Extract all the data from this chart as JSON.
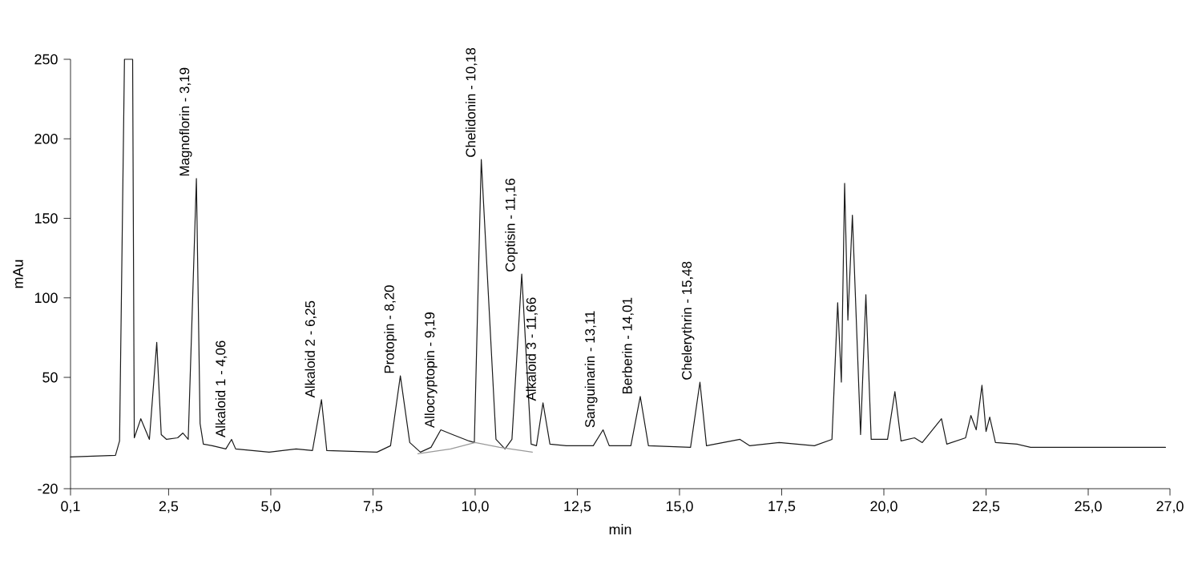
{
  "chart_data": {
    "type": "line",
    "xlabel": "min",
    "ylabel": "mAu",
    "xlim": [
      0.1,
      27.0
    ],
    "ylim": [
      -20,
      250
    ],
    "xticks": [
      {
        "value": 0.1,
        "label": "0,1"
      },
      {
        "value": 2.5,
        "label": "2,5"
      },
      {
        "value": 5.0,
        "label": "5,0"
      },
      {
        "value": 7.5,
        "label": "7,5"
      },
      {
        "value": 10.0,
        "label": "10,0"
      },
      {
        "value": 12.5,
        "label": "12,5"
      },
      {
        "value": 15.0,
        "label": "15,0"
      },
      {
        "value": 17.5,
        "label": "17,5"
      },
      {
        "value": 20.0,
        "label": "20,0"
      },
      {
        "value": 22.5,
        "label": "22,5"
      },
      {
        "value": 25.0,
        "label": "25,0"
      },
      {
        "value": 27.0,
        "label": "27,0"
      }
    ],
    "yticks": [
      -20,
      50,
      100,
      150,
      200,
      250
    ],
    "series": [
      {
        "color": "#1a1a1a",
        "x": [
          0.1,
          1.2,
          1.3,
          1.42,
          1.62,
          1.66,
          1.82,
          2.03,
          2.21,
          2.32,
          2.45,
          2.72,
          2.85,
          2.98,
          3.18,
          3.27,
          3.35,
          3.57,
          3.9,
          4.04,
          4.14,
          4.96,
          5.62,
          6.02,
          6.24,
          6.37,
          7.6,
          7.93,
          8.17,
          8.4,
          8.66,
          8.92,
          9.16,
          9.45,
          9.85,
          9.98,
          10.15,
          10.51,
          10.73,
          10.9,
          11.14,
          11.37,
          11.5,
          11.66,
          11.83,
          12.23,
          12.89,
          13.13,
          13.28,
          13.81,
          14.04,
          14.24,
          15.27,
          15.5,
          15.66,
          16.48,
          16.72,
          17.44,
          18.3,
          18.73,
          18.87,
          18.96,
          19.04,
          19.12,
          19.23,
          19.43,
          19.56,
          19.69,
          20.09,
          20.27,
          20.42,
          20.75,
          20.94,
          21.41,
          21.54,
          22.0,
          22.13,
          22.26,
          22.4,
          22.5,
          22.59,
          22.73,
          23.26,
          23.59,
          26.89
        ],
        "values": [
          0,
          1,
          10,
          250,
          250,
          12,
          24,
          11,
          72,
          14,
          11,
          12,
          15,
          11,
          175,
          21,
          8,
          7,
          5,
          11,
          5,
          3,
          5,
          4,
          36,
          4,
          3,
          7,
          51,
          9,
          3,
          6,
          17,
          14,
          10,
          9,
          187,
          11,
          5,
          11,
          115,
          8,
          7,
          34,
          8,
          7,
          7,
          17,
          7,
          7,
          38,
          7,
          6,
          47,
          7,
          11,
          7,
          9,
          7,
          11,
          97,
          47,
          172,
          86,
          152,
          14,
          102,
          11,
          11,
          41,
          10,
          12,
          9,
          24,
          8,
          12,
          26,
          17,
          45,
          16,
          25,
          9,
          8,
          6,
          6
        ]
      },
      {
        "color": "#9a9a9a",
        "x": [
          8.6,
          9.4,
          10.0,
          10.6,
          11.4
        ],
        "values": [
          2,
          5,
          9,
          6,
          3
        ]
      }
    ],
    "annotations": [
      {
        "text": "Magnoflorin - 3,19",
        "x": 3.19,
        "y": 175
      },
      {
        "text": "Alkaloid 1 - 4,06",
        "x": 4.06,
        "y": 11
      },
      {
        "text": "Alkaloid 2 - 6,25",
        "x": 6.25,
        "y": 36
      },
      {
        "text": "Protopin - 8,20",
        "x": 8.2,
        "y": 51
      },
      {
        "text": "Allocryptopin - 9,19",
        "x": 9.19,
        "y": 17
      },
      {
        "text": "Chelidonin - 10,18",
        "x": 10.18,
        "y": 187
      },
      {
        "text": "Coptisin - 11,16",
        "x": 11.16,
        "y": 115
      },
      {
        "text": "Alkaloid 3 - 11,66",
        "x": 11.66,
        "y": 34
      },
      {
        "text": "Sanguinarin - 13,11",
        "x": 13.11,
        "y": 17
      },
      {
        "text": "Berberin - 14,01",
        "x": 14.01,
        "y": 38
      },
      {
        "text": "Chelerythrin - 15,48",
        "x": 15.48,
        "y": 47
      }
    ]
  }
}
